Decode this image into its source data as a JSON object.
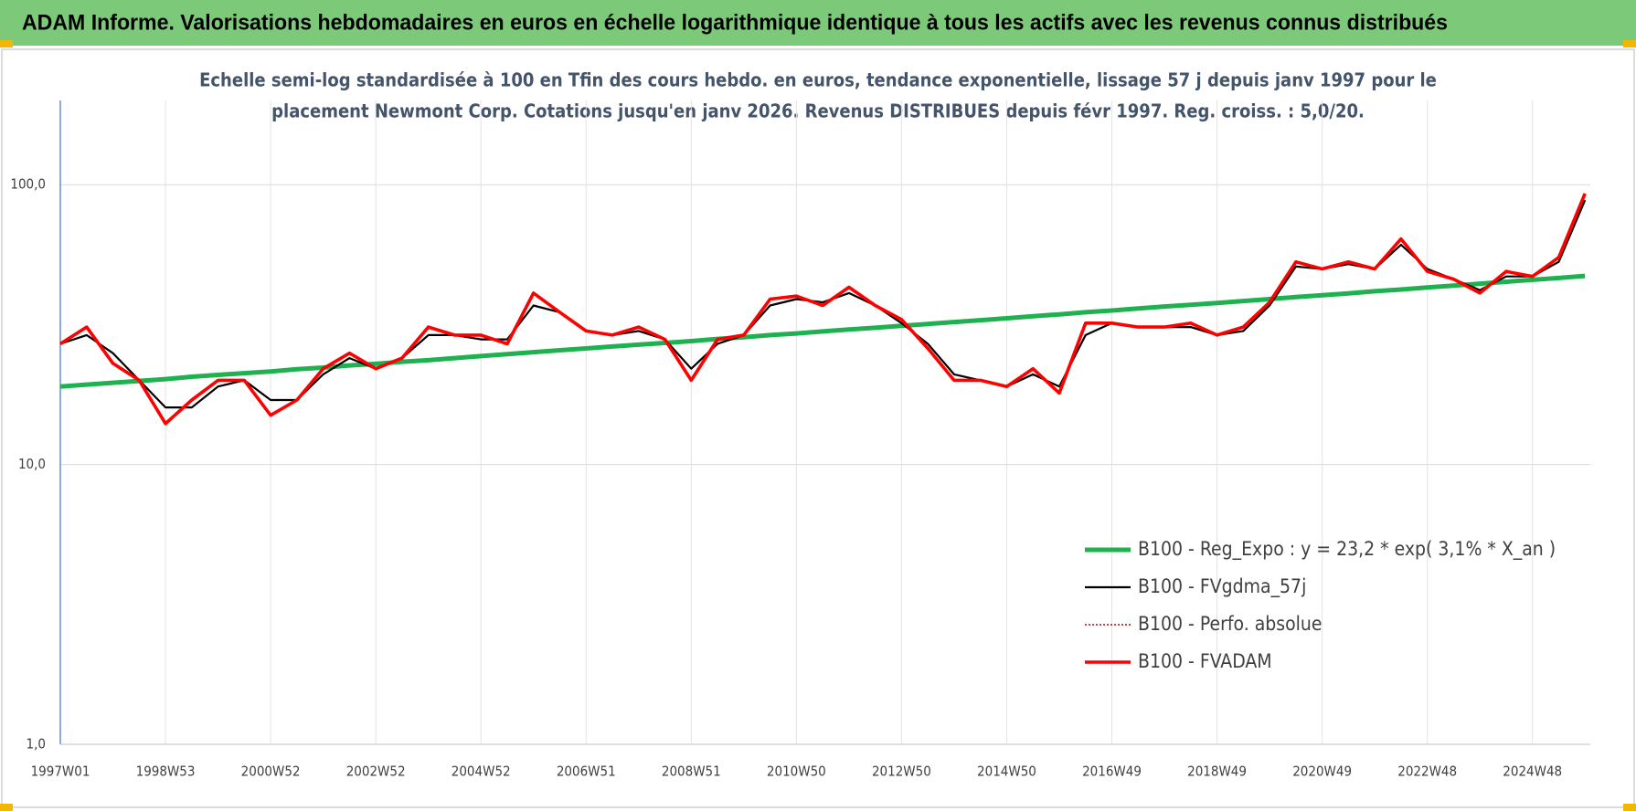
{
  "header": {
    "title": "ADAM Informe. Valorisations hebdomadaires en euros en échelle logarithmique identique à tous les actifs avec les revenus connus distribués"
  },
  "chart_data": {
    "type": "line",
    "subtitle": [
      "Echelle semi-log standardisée à 100 en Tfin des cours hebdo. en euros, tendance exponentielle, lissage 57 j depuis janv 1997 pour le",
      "placement Newmont Corp. Cotations jusqu'en janv 2026. Revenus DISTRIBUES depuis févr 1997. Reg. croiss. : 5,0/20."
    ],
    "log_scale": true,
    "grid": true,
    "legend_position": "right",
    "ylim": [
      1,
      200
    ],
    "yticks": [
      {
        "value": 1,
        "label": "1,0"
      },
      {
        "value": 10,
        "label": "10,0"
      },
      {
        "value": 100,
        "label": "100,0"
      }
    ],
    "categories": [
      "1997W01",
      null,
      null,
      null,
      "1998W53",
      null,
      null,
      null,
      "2000W52",
      null,
      null,
      null,
      "2002W52",
      null,
      null,
      null,
      "2004W52",
      null,
      null,
      null,
      "2006W51",
      null,
      null,
      null,
      "2008W51",
      null,
      null,
      null,
      "2010W50",
      null,
      null,
      null,
      "2012W50",
      null,
      null,
      null,
      "2014W50",
      null,
      null,
      null,
      "2016W49",
      null,
      null,
      null,
      "2018W49",
      null,
      null,
      null,
      "2020W49",
      null,
      null,
      null,
      "2022W48",
      null,
      null,
      null,
      "2024W48",
      null,
      null
    ],
    "series": [
      {
        "name": "B100 - Reg_Expo : y = 23,2 * exp( 3,1% *  X_an )",
        "color": "#1fb04f",
        "line_style": "solid",
        "values": [
          19.0,
          19.3,
          19.6,
          19.9,
          20.2,
          20.6,
          20.9,
          21.2,
          21.5,
          21.9,
          22.2,
          22.6,
          22.9,
          23.3,
          23.6,
          24.0,
          24.4,
          24.8,
          25.2,
          25.6,
          26.0,
          26.4,
          26.8,
          27.2,
          27.6,
          28.1,
          28.5,
          29.0,
          29.4,
          29.9,
          30.4,
          30.8,
          31.3,
          31.8,
          32.3,
          32.8,
          33.3,
          33.9,
          34.4,
          35.0,
          35.5,
          36.1,
          36.7,
          37.2,
          37.8,
          38.4,
          39.0,
          39.7,
          40.3,
          40.9,
          41.6,
          42.2,
          42.9,
          43.6,
          44.3,
          45.0,
          45.7,
          46.4,
          47.2
        ]
      },
      {
        "name": "B100 - FVgdma_57j",
        "color": "#000000",
        "line_style": "solid",
        "values": [
          27,
          29,
          25,
          20,
          16,
          16,
          19,
          20,
          17,
          17,
          21,
          24,
          22,
          24,
          29,
          29,
          28,
          28,
          37,
          35,
          30,
          29,
          30,
          28,
          22,
          27,
          29,
          37,
          39,
          38,
          41,
          37,
          32,
          27,
          21,
          20,
          19,
          21,
          19,
          29,
          32,
          31,
          31,
          31,
          29,
          30,
          37,
          51,
          50,
          52,
          50,
          61,
          50,
          46,
          42,
          47,
          47,
          53,
          88
        ]
      },
      {
        "name": "B100 - Perfo. absolue",
        "color": "#c00000",
        "line_style": "dotted",
        "values": [
          27,
          31,
          23,
          20,
          14,
          17,
          20,
          20,
          15,
          17,
          22,
          25,
          22,
          24,
          31,
          29,
          29,
          27,
          41,
          35,
          30,
          29,
          31,
          28,
          20,
          28,
          29,
          39,
          40,
          37,
          43,
          37,
          33,
          26,
          20,
          20,
          19,
          22,
          18,
          32,
          32,
          31,
          31,
          32,
          29,
          31,
          38,
          53,
          50,
          53,
          50,
          64,
          49,
          46,
          41,
          49,
          47,
          55,
          93
        ]
      },
      {
        "name": "B100 - FVADAM",
        "color": "#ff0000",
        "line_style": "solid",
        "values": [
          27,
          31,
          23,
          20,
          14,
          17,
          20,
          20,
          15,
          17,
          22,
          25,
          22,
          24,
          31,
          29,
          29,
          27,
          41,
          35,
          30,
          29,
          31,
          28,
          20,
          28,
          29,
          39,
          40,
          37,
          43,
          37,
          33,
          26,
          20,
          20,
          19,
          22,
          18,
          32,
          32,
          31,
          31,
          32,
          29,
          31,
          38,
          53,
          50,
          53,
          50,
          64,
          49,
          46,
          41,
          49,
          47,
          55,
          93
        ]
      }
    ]
  }
}
